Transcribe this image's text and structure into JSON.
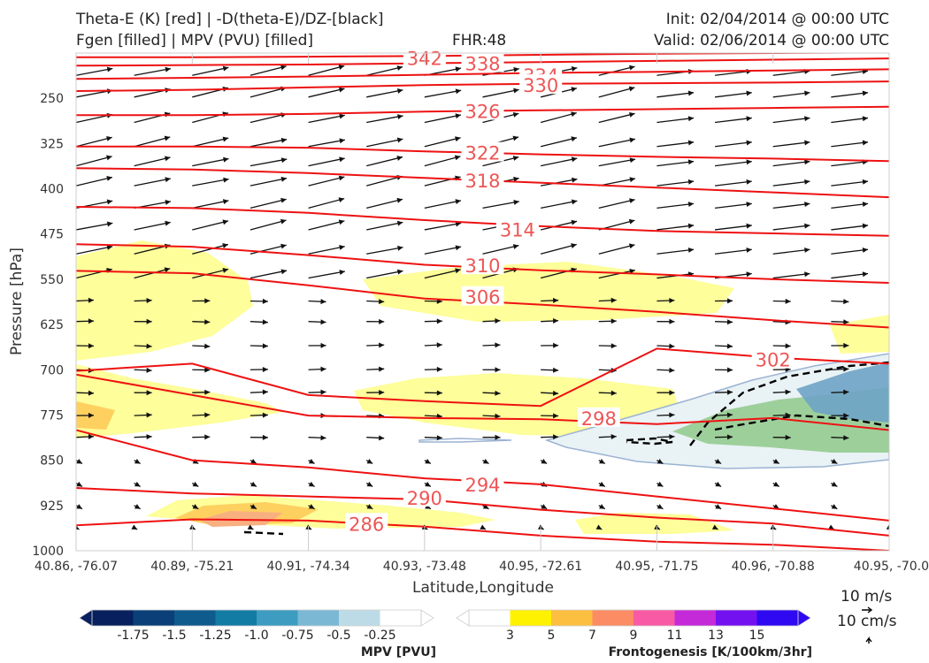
{
  "header": {
    "title_line1": "Theta-E (K) [red] | -D(theta-E)/DZ-[black]",
    "title_line2": "Fgen [filled] | MPV (PVU) [filled]",
    "fhr": "FHR:48",
    "init": "Init: 02/04/2014 @ 00:00 UTC",
    "valid": "Valid: 02/06/2014 @ 00:00 UTC"
  },
  "colors": {
    "theta_e": "#ee1111",
    "label": "#ee5555",
    "arrow": "#111111",
    "fgen3": "#fefe9a",
    "fgen5": "#fed060",
    "fgen7": "#f8a070",
    "mpv": "#9bb3d3",
    "mpv_green": "#8fc98a"
  },
  "chart_data": {
    "type": "cross-section",
    "xlabel": "Latitude,Longitude",
    "ylabel": "Pressure [hPa]",
    "x_ticks": [
      "40.86, -76.07",
      "40.89, -75.21",
      "40.91, -74.34",
      "40.93, -73.48",
      "40.95, -72.61",
      "40.95, -71.75",
      "40.96, -70.88",
      "40.95, -70.0"
    ],
    "y_ticks": [
      "250",
      "325",
      "400",
      "475",
      "550",
      "625",
      "700",
      "775",
      "850",
      "925",
      "1000"
    ],
    "ylim": [
      1000,
      175
    ],
    "theta_e_contours": [
      {
        "value": "342",
        "y": [
          182,
          182,
          181,
          180,
          178,
          176,
          175,
          174
        ]
      },
      {
        "value": "338",
        "y": [
          196,
          195,
          194,
          192,
          190,
          188,
          186,
          184
        ]
      },
      {
        "value": "334",
        "y": [
          218,
          216,
          214,
          211,
          208,
          206,
          204,
          202
        ]
      },
      {
        "value": "330",
        "y": [
          238,
          236,
          232,
          228,
          226,
          225,
          224,
          222
        ]
      },
      {
        "value": "326",
        "y": [
          278,
          278,
          276,
          272,
          270,
          268,
          266,
          264
        ]
      },
      {
        "value": "322",
        "y": [
          330,
          330,
          332,
          338,
          343,
          347,
          350,
          354
        ]
      },
      {
        "value": "318",
        "y": [
          366,
          368,
          374,
          382,
          390,
          398,
          406,
          414
        ]
      },
      {
        "value": "314",
        "y": [
          430,
          432,
          440,
          452,
          462,
          470,
          474,
          478
        ]
      },
      {
        "value": "310",
        "y": [
          492,
          496,
          510,
          526,
          535,
          542,
          550,
          556
        ]
      },
      {
        "value": "306",
        "y": [
          536,
          540,
          560,
          582,
          592,
          604,
          618,
          630
        ]
      },
      {
        "value": "302",
        "y": [
          702,
          690,
          742,
          752,
          760,
          665,
          680,
          690
        ]
      },
      {
        "value": "298",
        "y": [
          708,
          742,
          776,
          780,
          782,
          790,
          780,
          800
        ]
      },
      {
        "value": "294",
        "y": [
          800,
          850,
          862,
          880,
          890,
          910,
          930,
          950
        ]
      },
      {
        "value": "290",
        "y": [
          896,
          905,
          910,
          915,
          932,
          945,
          955,
          975
        ]
      },
      {
        "value": "286",
        "y": [
          958,
          948,
          950,
          960,
          975,
          985,
          990,
          1000
        ]
      }
    ],
    "contour_labels": [
      {
        "text": "342",
        "x": 3.0,
        "p": 183
      },
      {
        "text": "338",
        "x": 3.5,
        "p": 192
      },
      {
        "text": "334",
        "x": 4.0,
        "p": 212
      },
      {
        "text": "330",
        "x": 4.0,
        "p": 228
      },
      {
        "text": "326",
        "x": 3.5,
        "p": 271
      },
      {
        "text": "322",
        "x": 3.5,
        "p": 340
      },
      {
        "text": "318",
        "x": 3.5,
        "p": 386
      },
      {
        "text": "314",
        "x": 3.8,
        "p": 467
      },
      {
        "text": "310",
        "x": 3.5,
        "p": 527
      },
      {
        "text": "306",
        "x": 3.5,
        "p": 579
      },
      {
        "text": "302",
        "x": 6.0,
        "p": 683
      },
      {
        "text": "298",
        "x": 4.5,
        "p": 780
      },
      {
        "text": "294",
        "x": 3.5,
        "p": 890
      },
      {
        "text": "290",
        "x": 3.0,
        "p": 912
      },
      {
        "text": "286",
        "x": 2.5,
        "p": 955
      }
    ],
    "wind_scale": {
      "u": "10 m/s",
      "w": "10 cm/s"
    }
  },
  "colorbars": {
    "mpv": {
      "title": "MPV [PVU]",
      "labels": [
        "-1.75",
        "-1.5",
        "-1.25",
        "-1.0",
        "-0.75",
        "-0.5",
        "-0.25"
      ],
      "colors": [
        "#08205e",
        "#0b3f78",
        "#0f5b8e",
        "#137ca4",
        "#3d9cc0",
        "#7ab8d4",
        "#bcdbe6",
        "#ffffff"
      ]
    },
    "fgen": {
      "title": "Frontogenesis [K/100km/3hr]",
      "labels": [
        "3",
        "5",
        "7",
        "9",
        "11",
        "13",
        "15"
      ],
      "colors": [
        "#ffffff",
        "#fff200",
        "#fdbf40",
        "#fb8c64",
        "#f95aa6",
        "#c42ad8",
        "#7411f0",
        "#2e09f2"
      ]
    }
  }
}
